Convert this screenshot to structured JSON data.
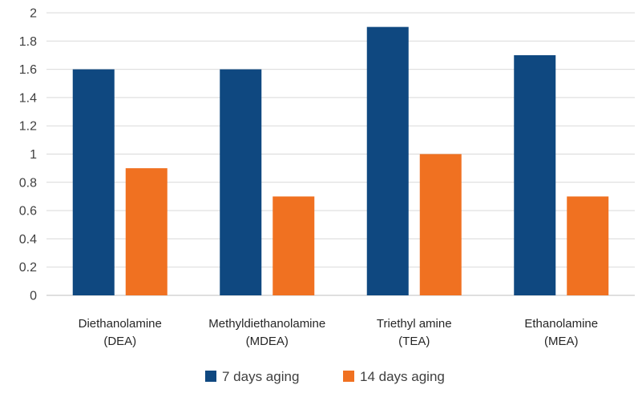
{
  "chart_data": {
    "type": "bar",
    "categories": [
      [
        "Diethanolamine",
        "(DEA)"
      ],
      [
        "Methyldiethanolamine",
        "(MDEA)"
      ],
      [
        "Triethyl amine",
        "(TEA)"
      ],
      [
        "Ethanolamine",
        "(MEA)"
      ]
    ],
    "series": [
      {
        "name": "7 days aging",
        "color": "#0f4880",
        "values": [
          1.6,
          1.6,
          1.9,
          1.7
        ]
      },
      {
        "name": "14 days aging",
        "color": "#f07121",
        "values": [
          0.9,
          0.7,
          1.0,
          0.7
        ]
      }
    ],
    "ylim": [
      0,
      2
    ],
    "yticks": [
      "0",
      "0.2",
      "0.4",
      "0.6",
      "0.8",
      "1",
      "1.2",
      "1.4",
      "1.6",
      "1.8",
      "2"
    ],
    "grid": true,
    "legend": "bottom-center",
    "title": "",
    "xlabel": "",
    "ylabel": ""
  }
}
